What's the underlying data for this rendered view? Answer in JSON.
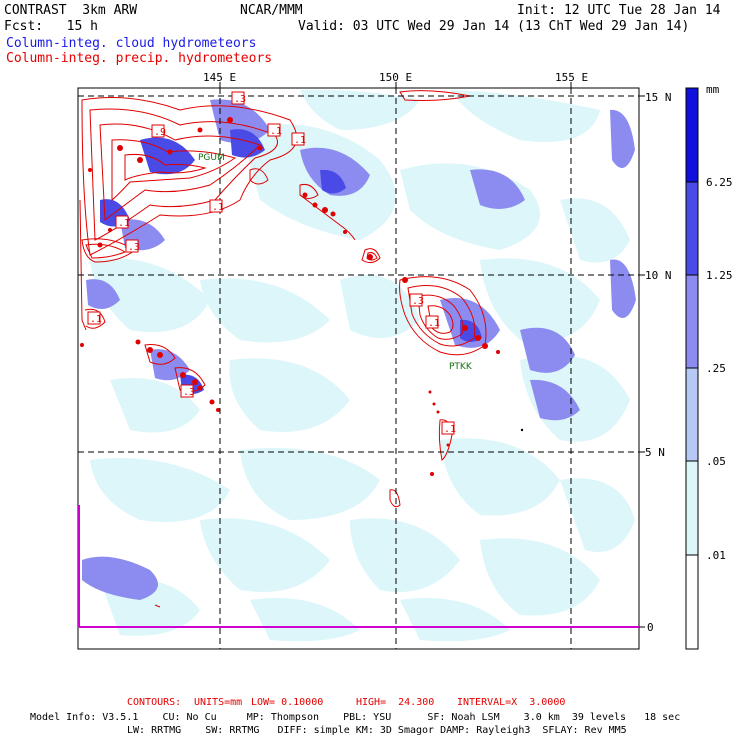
{
  "header": {
    "model": "CONTRAST  3km ARW",
    "org": "NCAR/MMM",
    "init": "Init: 12 UTC Tue 28 Jan 14",
    "fcst": "Fcst:   15 h",
    "valid": "Valid: 03 UTC Wed 29 Jan 14 (13 ChT Wed 29 Jan 14)",
    "legend_cloud": "Column-integ. cloud hydrometeors",
    "legend_precip": "Column-integ. precip. hydrometeors"
  },
  "map": {
    "lon_labels": [
      "145 E",
      "150 E",
      "155 E"
    ],
    "lat_labels": [
      "15 N",
      "10 N",
      "5 N",
      "0"
    ],
    "stations": [
      "PGUM",
      "PTKK"
    ],
    "contour_labels": [
      ".3",
      ".9",
      ".1",
      ".1",
      ".1",
      ".1",
      ".3",
      ".1",
      ".3",
      ".1",
      ".3",
      ".1"
    ]
  },
  "colorbar": {
    "units": "mm",
    "levels": [
      "6.25",
      "1.25",
      ".25",
      ".05",
      ".01"
    ],
    "colors": [
      "#1010dc",
      "#4a4ae6",
      "#8c8cf0",
      "#b6c8f4",
      "#dcf6fa",
      "#ffffff"
    ]
  },
  "footer": {
    "contours_label": "CONTOURS:",
    "units": "UNITS=mm",
    "low": "LOW= 0.10000",
    "high": "HIGH=  24.300",
    "interval": "INTERVAL=X  3.0000",
    "model_info_1": "Model Info: V3.5.1    CU: No Cu     MP: Thompson    PBL: YSU      SF: Noah LSM    3.0 km  39 levels   18 sec",
    "model_info_2": "LW: RRTMG    SW: RRTMG   DIFF: simple KM: 3D Smagor DAMP: Rayleigh3  SFLAY: Rev MM5"
  },
  "colors": {
    "cloud_text": "#1a1ae6",
    "precip_text": "#e60000",
    "precip_contour": "#e00000",
    "station_text": "#107010",
    "equator_line": "#d000d0"
  }
}
